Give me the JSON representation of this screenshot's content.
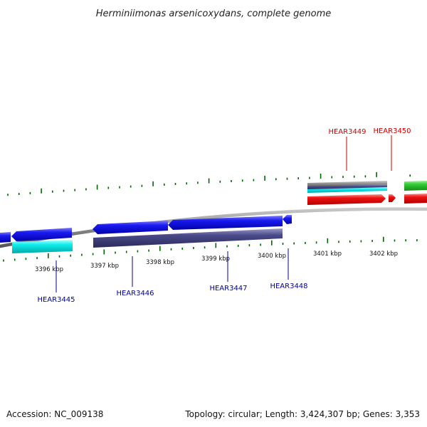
{
  "title": "Herminiimonas arsenicoxydans, complete genome",
  "footer": {
    "accession": "Accession: NC_009138",
    "summary": "Topology: circular; Length: 3,424,307 bp; Genes: 3,353"
  },
  "ticks": [
    "3396 kbp",
    "3397 kbp",
    "3398 kbp",
    "3399 kbp",
    "3400 kbp",
    "3401 kbp",
    "3402 kbp"
  ],
  "genes_reverse": [
    "HEAR3445",
    "HEAR3446",
    "HEAR3447",
    "HEAR3448"
  ],
  "genes_forward": [
    "HEAR3449",
    "HEAR3450"
  ],
  "colors": {
    "forward_label": "#cc0000",
    "reverse_label": "#000099",
    "tick": "#006600",
    "backbone": "#808080",
    "cds_reverse": "#1010dd",
    "cds_forward": "#ee1111",
    "cds_green": "#33cc33",
    "cds_cyan": "#11eeee",
    "cds_slate": "#4a4a8a"
  }
}
